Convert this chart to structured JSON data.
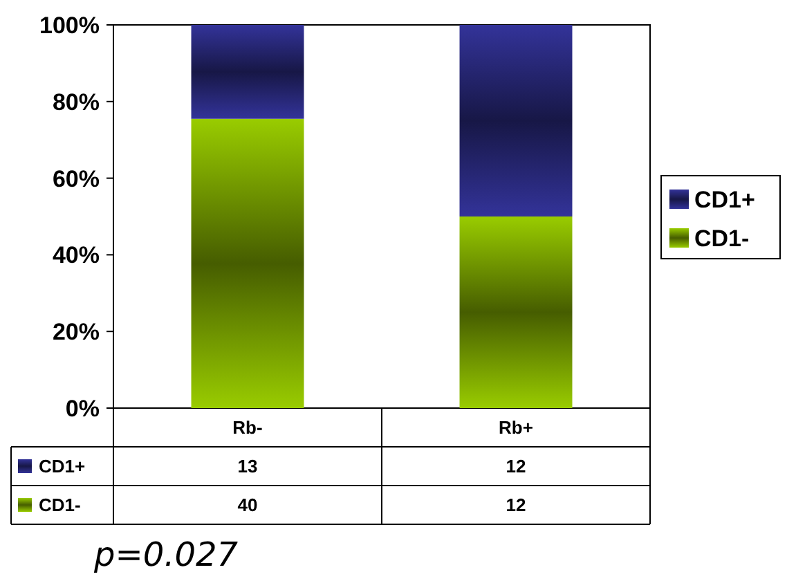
{
  "chart_data": {
    "type": "bar",
    "stacked": true,
    "categories": [
      "Rb-",
      "Rb+"
    ],
    "series": [
      {
        "name": "CD1-",
        "color": "#99cc00",
        "values": [
          75.5,
          50
        ]
      },
      {
        "name": "CD1+",
        "color": "#333399",
        "values": [
          24.5,
          50
        ]
      }
    ],
    "ylim": [
      0,
      100
    ],
    "yticks": [
      {
        "value": 0,
        "label": "0%"
      },
      {
        "value": 20,
        "label": "20%"
      },
      {
        "value": 40,
        "label": "40%"
      },
      {
        "value": 60,
        "label": "60%"
      },
      {
        "value": 80,
        "label": "80%"
      },
      {
        "value": 100,
        "label": "100%"
      }
    ],
    "grid": false,
    "legend": "right",
    "annotations": [
      "13",
      "12",
      "40",
      "12",
      "p=0.027"
    ]
  }
}
